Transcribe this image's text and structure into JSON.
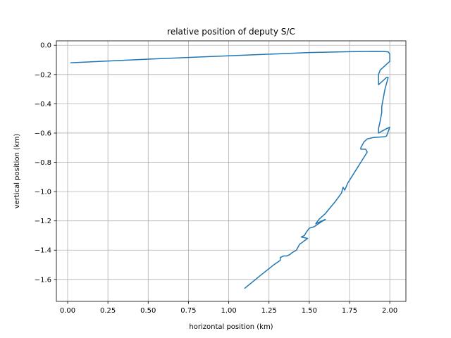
{
  "chart_data": {
    "type": "line",
    "title": "relative position of deputy S/C",
    "xlabel": "horizontal position (km)",
    "ylabel": "vertical position (km)",
    "xlim": [
      -0.07,
      2.1
    ],
    "ylim": [
      -1.75,
      0.03
    ],
    "grid": true,
    "x_ticks": [
      0.0,
      0.25,
      0.5,
      0.75,
      1.0,
      1.25,
      1.5,
      1.75,
      2.0
    ],
    "x_tick_labels": [
      "0.00",
      "0.25",
      "0.50",
      "0.75",
      "1.00",
      "1.25",
      "1.50",
      "1.75",
      "2.00"
    ],
    "y_ticks": [
      0.0,
      -0.2,
      -0.4,
      -0.6,
      -0.8,
      -1.0,
      -1.2,
      -1.4,
      -1.6
    ],
    "y_tick_labels": [
      "0.0",
      "−0.2",
      "−0.4",
      "−0.6",
      "−0.8",
      "−1.0",
      "−1.2",
      "−1.4",
      "−1.6"
    ],
    "series": [
      {
        "color": "#1f77b4",
        "x": [
          0.02,
          0.5,
          1.0,
          1.5,
          1.75,
          1.9,
          1.96,
          1.99,
          2.0,
          2.0,
          1.96,
          1.94,
          1.93,
          1.93,
          1.96,
          1.98,
          1.99,
          1.97,
          1.96,
          1.95,
          1.95,
          1.94,
          1.93,
          1.93,
          1.98,
          2.0,
          1.98,
          1.97,
          1.9,
          1.86,
          1.84,
          1.82,
          1.82,
          1.85,
          1.86,
          1.82,
          1.78,
          1.74,
          1.72,
          1.71,
          1.7,
          1.66,
          1.6,
          1.56,
          1.54,
          1.6,
          1.57,
          1.53,
          1.5,
          1.48,
          1.47,
          1.45,
          1.49,
          1.44,
          1.42,
          1.39,
          1.38,
          1.36,
          1.34,
          1.32,
          1.32,
          1.28,
          1.2,
          1.1
        ],
        "y": [
          -0.12,
          -0.095,
          -0.072,
          -0.05,
          -0.044,
          -0.042,
          -0.043,
          -0.045,
          -0.06,
          -0.11,
          -0.15,
          -0.17,
          -0.2,
          -0.27,
          -0.24,
          -0.22,
          -0.22,
          -0.3,
          -0.36,
          -0.42,
          -0.46,
          -0.52,
          -0.57,
          -0.6,
          -0.57,
          -0.56,
          -0.62,
          -0.625,
          -0.63,
          -0.64,
          -0.66,
          -0.7,
          -0.71,
          -0.71,
          -0.73,
          -0.8,
          -0.87,
          -0.94,
          -0.99,
          -0.97,
          -1.01,
          -1.07,
          -1.15,
          -1.19,
          -1.22,
          -1.19,
          -1.21,
          -1.24,
          -1.25,
          -1.28,
          -1.3,
          -1.31,
          -1.32,
          -1.36,
          -1.4,
          -1.42,
          -1.43,
          -1.44,
          -1.44,
          -1.45,
          -1.47,
          -1.5,
          -1.57,
          -1.66
        ]
      }
    ]
  }
}
